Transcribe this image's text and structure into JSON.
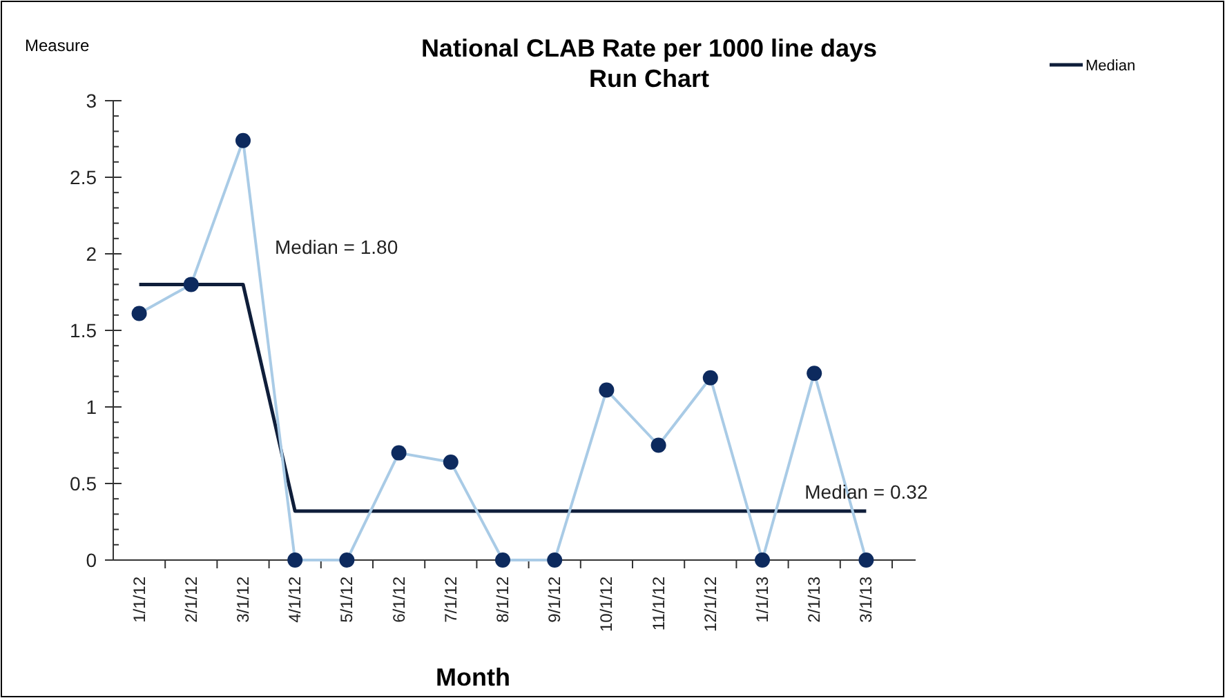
{
  "chart_data": {
    "type": "line",
    "title": "National CLAB Rate per 1000 line days",
    "subtitle": "Run Chart",
    "xlabel": "Month",
    "ylabel": "Measure",
    "categories": [
      "1/1/12",
      "2/1/12",
      "3/1/12",
      "4/1/12",
      "5/1/12",
      "6/1/12",
      "7/1/12",
      "8/1/12",
      "9/1/12",
      "10/1/12",
      "11/1/12",
      "12/1/12",
      "1/1/13",
      "2/1/13",
      "3/1/13"
    ],
    "series": [
      {
        "color": "#a9cbe6",
        "marker": "circle",
        "colors": [
          "#0d2a5e",
          "#0d2a5e",
          "#0d2a5e",
          "#0d2a5e",
          "#0d2a5e",
          "#0d2a5e",
          "#0d2a5e",
          "#0d2a5e",
          "#0d2a5e",
          "#0d2a5e",
          "#0d2a5e",
          "#0d2a5e",
          "#0d2a5e",
          "#0d2a5e",
          "#0d2a5e"
        ],
        "values": [
          1.61,
          1.8,
          2.74,
          0,
          0,
          0.7,
          0.64,
          0,
          0,
          1.11,
          0.75,
          1.19,
          0,
          1.22,
          0
        ]
      },
      {
        "name": "Median",
        "color": "#0f1e3a",
        "marker": "none",
        "values": [
          1.8,
          1.8,
          1.8,
          0.32,
          0.32,
          0.32,
          0.32,
          0.32,
          0.32,
          0.32,
          0.32,
          0.32,
          0.32,
          0.32,
          0.32
        ]
      }
    ],
    "ylim": [
      0,
      3
    ],
    "yticks": [
      0,
      0.5,
      1,
      1.5,
      2,
      2.5,
      3
    ],
    "annotations": [
      {
        "text": "Median = 1.80",
        "x": "3/1/12",
        "y": 1.8
      },
      {
        "text": "Median = 0.32",
        "x": "3/1/13",
        "y": 0.32
      }
    ],
    "legend": "top right",
    "grid": false
  }
}
